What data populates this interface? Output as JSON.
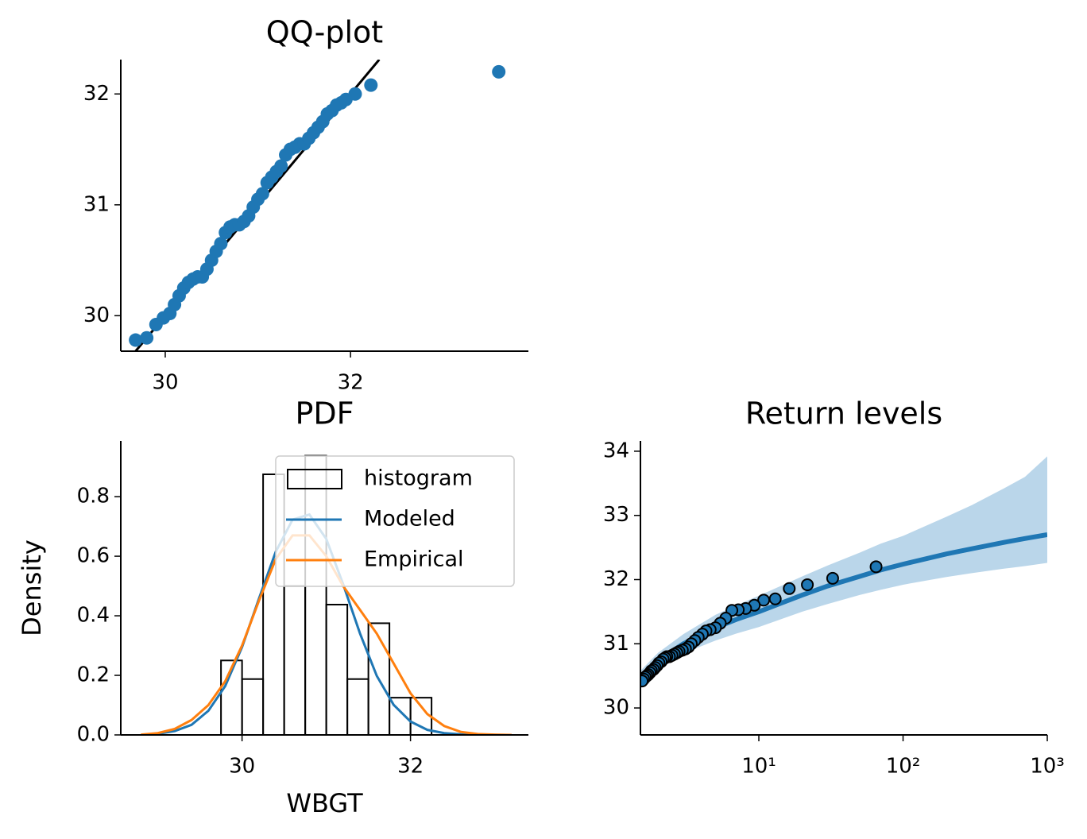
{
  "chart_data": [
    {
      "type": "scatter",
      "title": "QQ-plot",
      "x": [
        29.68,
        29.8,
        29.9,
        29.98,
        30.05,
        30.1,
        30.15,
        30.2,
        30.25,
        30.3,
        30.35,
        30.4,
        30.45,
        30.5,
        30.55,
        30.6,
        30.65,
        30.7,
        30.75,
        30.8,
        30.85,
        30.9,
        30.95,
        31.0,
        31.05,
        31.1,
        31.15,
        31.2,
        31.25,
        31.3,
        31.35,
        31.4,
        31.45,
        31.5,
        31.55,
        31.6,
        31.65,
        31.7,
        31.75,
        31.8,
        31.85,
        31.9,
        31.95,
        32.05,
        32.22,
        33.6
      ],
      "y": [
        29.78,
        29.8,
        29.92,
        29.98,
        30.02,
        30.1,
        30.18,
        30.25,
        30.3,
        30.33,
        30.35,
        30.35,
        30.42,
        30.5,
        30.58,
        30.65,
        30.75,
        30.8,
        30.82,
        30.82,
        30.85,
        30.9,
        30.98,
        31.05,
        31.1,
        31.2,
        31.25,
        31.3,
        31.35,
        31.45,
        31.5,
        31.52,
        31.55,
        31.55,
        31.6,
        31.65,
        31.7,
        31.75,
        31.82,
        31.85,
        31.9,
        31.92,
        31.95,
        32.0,
        32.08,
        32.2
      ],
      "color": "#1f77b4",
      "line": {
        "x": [
          29.68,
          32.31
        ],
        "y": [
          29.68,
          32.31
        ],
        "color": "#000000"
      },
      "xlim": [
        29.52,
        33.92
      ],
      "ylim": [
        29.68,
        32.31
      ],
      "xticks": [
        30,
        32
      ],
      "yticks": [
        30,
        31,
        32
      ]
    },
    {
      "type": "histogram",
      "title": "PDF",
      "xlabel": "WBGT",
      "ylabel": "Density",
      "histogram": {
        "name": "histogram",
        "color": "#000000",
        "bins": [
          29.75,
          30.0,
          30.25,
          30.5,
          30.75,
          31.0,
          31.25,
          31.5,
          31.75,
          32.0,
          32.25
        ],
        "values": [
          0.25,
          0.1875,
          0.875,
          0.5,
          0.9375,
          0.4375,
          0.1875,
          0.375,
          0.125,
          0.125
        ]
      },
      "x": [
        28.8,
        29.0,
        29.2,
        29.4,
        29.6,
        29.8,
        30.0,
        30.2,
        30.4,
        30.6,
        30.8,
        31.0,
        31.2,
        31.4,
        31.6,
        31.8,
        32.0,
        32.2,
        32.4,
        32.6,
        32.8,
        33.0,
        33.2
      ],
      "series": [
        {
          "name": "Modeled",
          "color": "#1f77b4",
          "values": [
            0.0,
            0.004,
            0.013,
            0.034,
            0.081,
            0.164,
            0.295,
            0.457,
            0.615,
            0.723,
            0.74,
            0.658,
            0.506,
            0.341,
            0.198,
            0.101,
            0.045,
            0.017,
            0.006,
            0.002,
            0.0,
            0.0,
            0.0
          ]
        },
        {
          "name": "Empirical",
          "color": "#ff7f0e",
          "values": [
            0.001,
            0.006,
            0.02,
            0.05,
            0.1,
            0.18,
            0.3,
            0.45,
            0.59,
            0.67,
            0.67,
            0.6,
            0.5,
            0.42,
            0.34,
            0.24,
            0.14,
            0.07,
            0.03,
            0.01,
            0.003,
            0.001,
            0.0
          ]
        }
      ],
      "legend": "upper right",
      "xlim": [
        28.56,
        33.4
      ],
      "ylim": [
        0,
        0.987
      ],
      "xticks": [
        30,
        32
      ],
      "yticks": [
        {
          "value": 0,
          "label": "0.0"
        },
        0.2,
        0.4,
        0.6,
        0.8
      ]
    },
    {
      "type": "line",
      "title": "Return levels",
      "xscale": "log",
      "xlim": [
        1.51,
        1000
      ],
      "ylim": [
        29.58,
        34.16
      ],
      "xticks": [
        {
          "value": 10,
          "label": "10¹"
        },
        {
          "value": 100,
          "label": "10²"
        },
        {
          "value": 1000,
          "label": "10³"
        }
      ],
      "yticks": [
        30,
        31,
        32,
        33,
        34
      ],
      "color": "#1f77b4",
      "ci_color": "#bad6ea",
      "ci": {
        "x": [
          1.51,
          2,
          3,
          5,
          7,
          10,
          20,
          30,
          50,
          70,
          100,
          200,
          300,
          500,
          700,
          1000
        ],
        "lower": [
          30.38,
          30.62,
          30.85,
          31.05,
          31.16,
          31.26,
          31.5,
          31.62,
          31.76,
          31.84,
          31.92,
          32.04,
          32.1,
          32.17,
          32.21,
          32.26
        ],
        "upper": [
          30.58,
          30.86,
          31.15,
          31.45,
          31.6,
          31.75,
          32.05,
          32.22,
          32.42,
          32.56,
          32.68,
          32.98,
          33.16,
          33.42,
          33.6,
          33.92
        ]
      },
      "curve": {
        "x": [
          1.51,
          2,
          3,
          5,
          7,
          10,
          20,
          30,
          50,
          70,
          100,
          200,
          300,
          500,
          700,
          1000
        ],
        "values": [
          30.48,
          30.74,
          31.0,
          31.25,
          31.38,
          31.5,
          31.76,
          31.9,
          32.05,
          32.15,
          32.24,
          32.4,
          32.48,
          32.58,
          32.64,
          32.7
        ]
      },
      "points": {
        "x": [
          65,
          32.5,
          21.7,
          16.25,
          13,
          10.8,
          9.3,
          8.1,
          7.2,
          6.5,
          5.9,
          5.4,
          5,
          4.6,
          4.3,
          4.06,
          3.8,
          3.6,
          3.4,
          3.25,
          3.1,
          2.95,
          2.8,
          2.7,
          2.6,
          2.5,
          2.4,
          2.3,
          2.24,
          2.17,
          2.1,
          2.03,
          1.97,
          1.91,
          1.86,
          1.8,
          1.76,
          1.71,
          1.67,
          1.63,
          1.59,
          1.55
        ],
        "values": [
          32.2,
          32.02,
          31.92,
          31.86,
          31.7,
          31.68,
          31.6,
          31.55,
          31.53,
          31.52,
          31.4,
          31.32,
          31.25,
          31.22,
          31.2,
          31.15,
          31.1,
          31.05,
          31.0,
          30.95,
          30.92,
          30.9,
          30.88,
          30.86,
          30.84,
          30.82,
          30.8,
          30.8,
          30.78,
          30.76,
          30.72,
          30.7,
          30.66,
          30.63,
          30.6,
          30.58,
          30.55,
          30.52,
          30.5,
          30.48,
          30.45,
          30.42
        ]
      }
    }
  ]
}
